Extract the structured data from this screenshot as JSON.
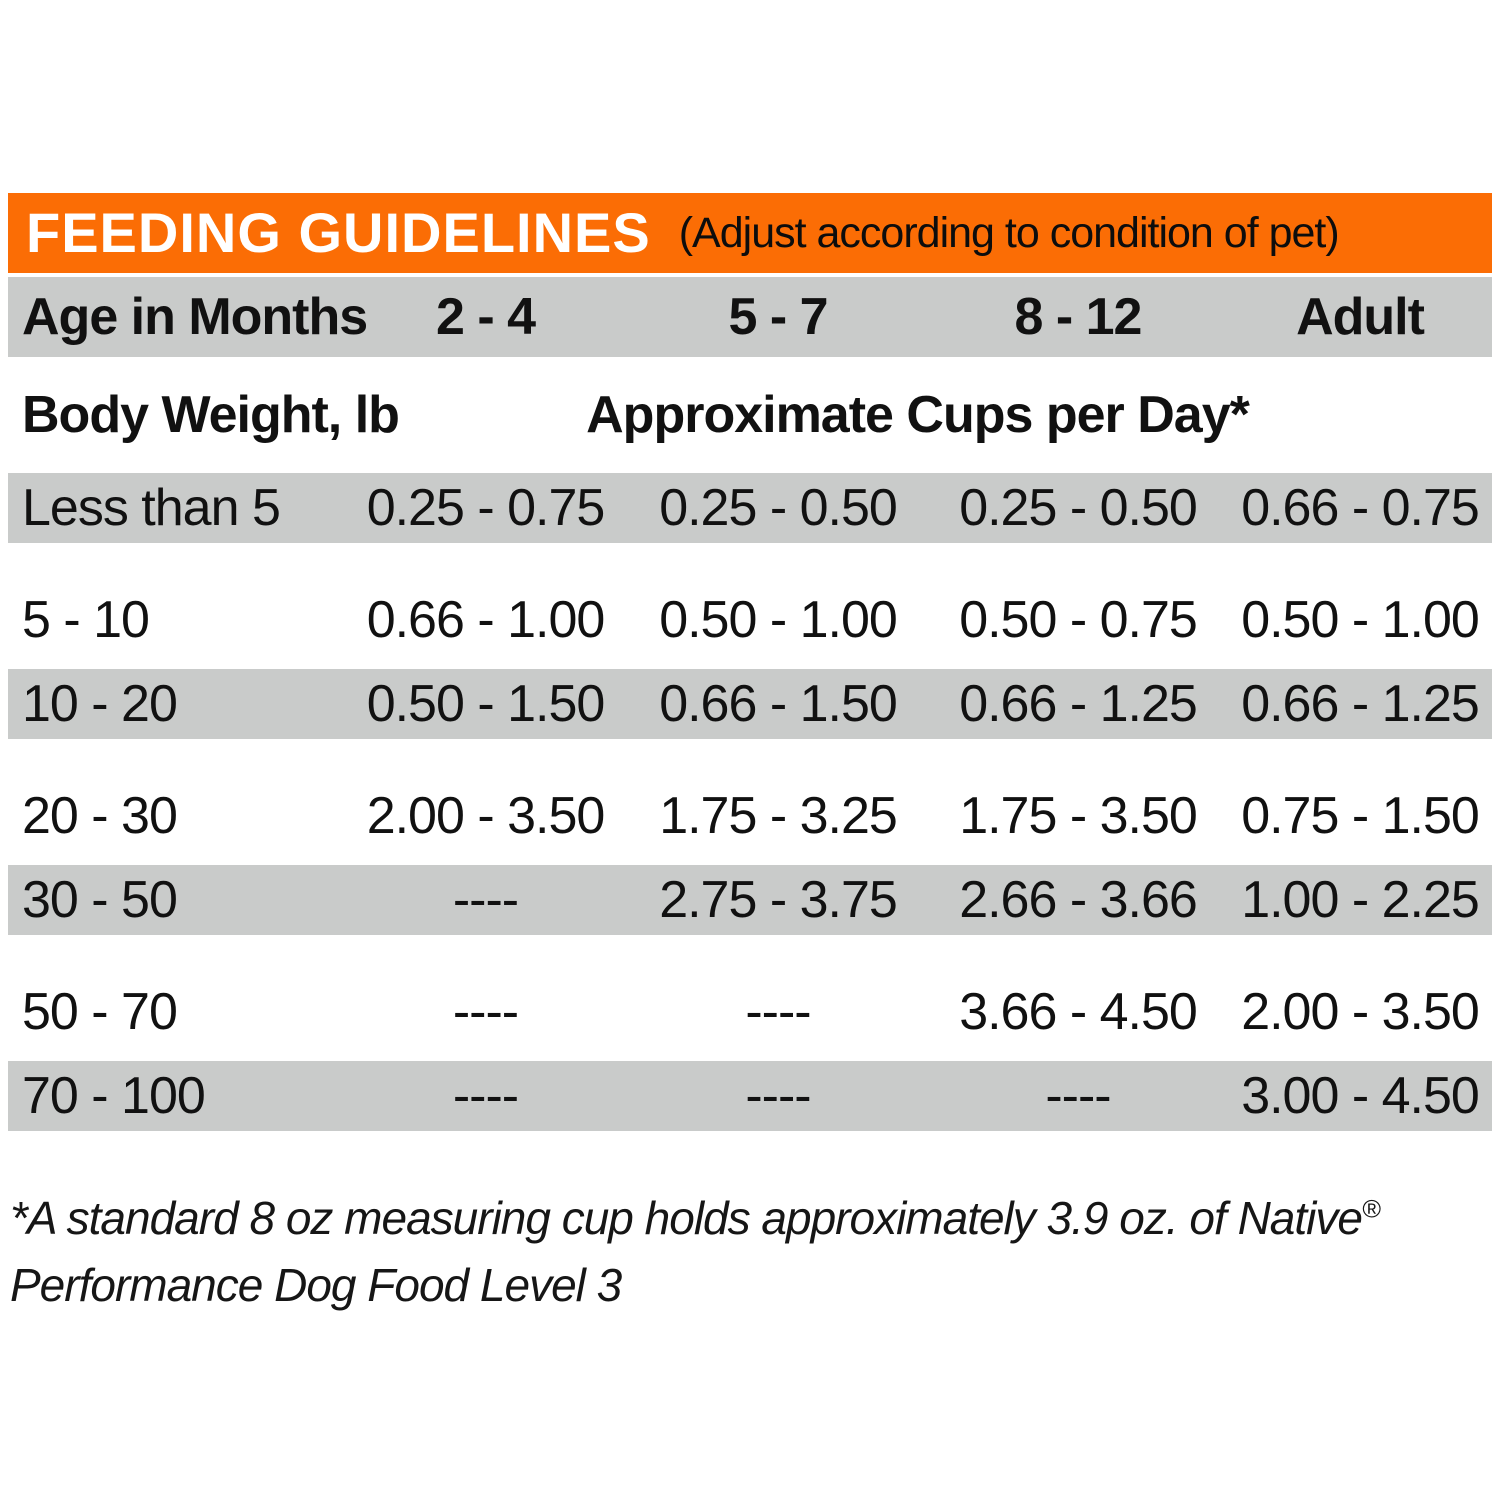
{
  "header": {
    "title": "FEEDING GUIDELINES",
    "subtitle": "(Adjust according to condition of pet)"
  },
  "table": {
    "age_header": {
      "label": "Age in Months",
      "columns": [
        "2 - 4",
        "5 - 7",
        "8 - 12",
        "Adult"
      ]
    },
    "weight_header": {
      "label": "Body Weight, lb",
      "caption": "Approximate Cups per Day*"
    },
    "rows": [
      {
        "weight": "Less than 5",
        "values": [
          "0.25 - 0.75",
          "0.25 - 0.50",
          "0.25 - 0.50",
          "0.66 - 0.75"
        ]
      },
      {
        "weight": "5 - 10",
        "values": [
          "0.66 - 1.00",
          "0.50 - 1.00",
          "0.50 - 0.75",
          "0.50 - 1.00"
        ]
      },
      {
        "weight": "10 - 20",
        "values": [
          "0.50 - 1.50",
          "0.66 - 1.50",
          "0.66 - 1.25",
          "0.66 - 1.25"
        ]
      },
      {
        "weight": "20 - 30",
        "values": [
          "2.00 - 3.50",
          "1.75 - 3.25",
          "1.75 - 3.50",
          "0.75 - 1.50"
        ]
      },
      {
        "weight": "30 - 50",
        "values": [
          "----",
          "2.75 - 3.75",
          "2.66 - 3.66",
          "1.00 - 2.25"
        ]
      },
      {
        "weight": "50 - 70",
        "values": [
          "----",
          "----",
          "3.66 - 4.50",
          "2.00 - 3.50"
        ]
      },
      {
        "weight": "70 - 100",
        "values": [
          "----",
          "----",
          "----",
          "3.00 - 4.50"
        ]
      }
    ]
  },
  "footnote": {
    "line1": "*A standard 8 oz measuring cup holds approximately 3.9 oz. of Native",
    "reg_mark": "®",
    "line2": "Performance Dog Food Level 3"
  },
  "colors": {
    "accent_orange": "#FB6D05",
    "row_gray": "#C9CBCA",
    "text_black": "#111111"
  }
}
